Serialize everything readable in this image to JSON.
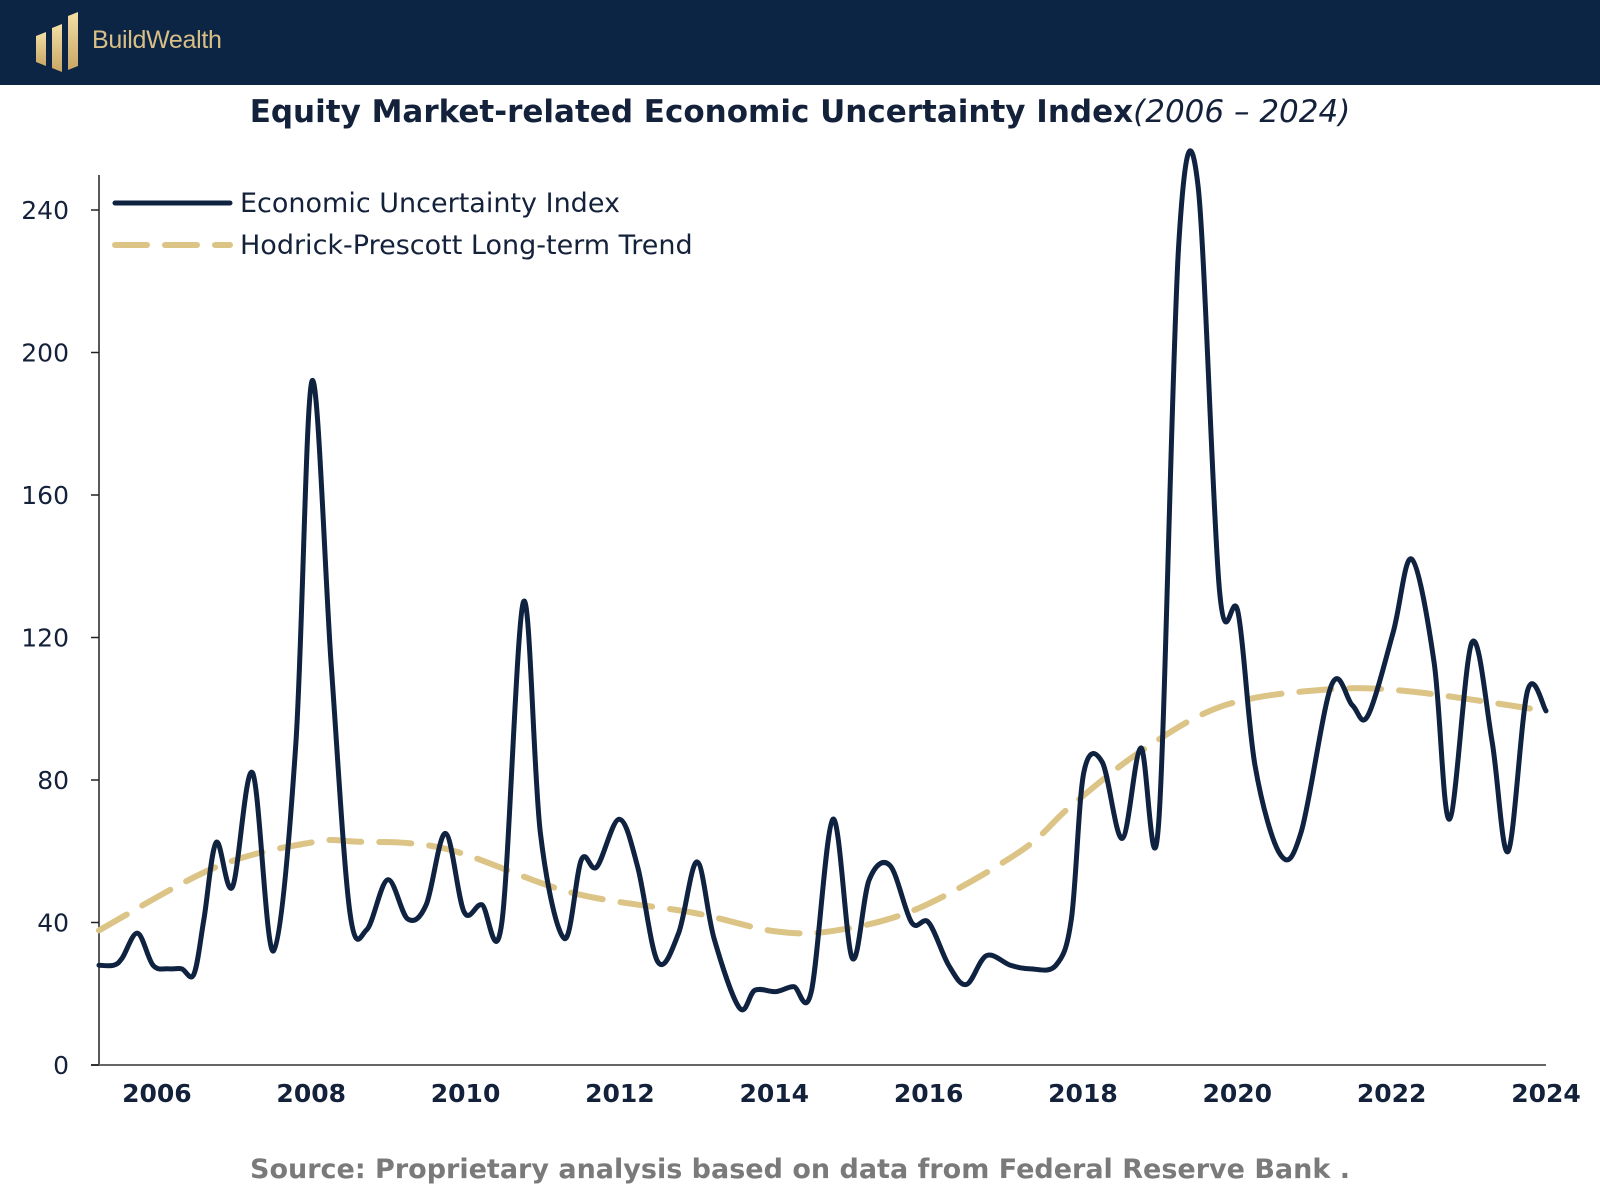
{
  "header": {
    "brand": "BuildWealth"
  },
  "colors": {
    "header_bg": "#0c2545",
    "gold": "#d8bf86",
    "series": "#0f2240",
    "trend": "#dcc487"
  },
  "chart_data": {
    "type": "line",
    "title": "Equity Market-related Economic Uncertainty Index",
    "subtitle": "(2006 – 2024)",
    "xlabel": "",
    "ylabel": "",
    "xlim": [
      2005.25,
      2024
    ],
    "ylim": [
      0,
      250
    ],
    "x_ticks": [
      2006,
      2008,
      2010,
      2012,
      2014,
      2016,
      2018,
      2020,
      2022,
      2024
    ],
    "x_tick_labels": [
      "2006",
      "2008",
      "2010",
      "2012",
      "2014",
      "2016",
      "2018",
      "2020",
      "2022",
      "2024"
    ],
    "y_ticks": [
      0,
      40,
      80,
      120,
      160,
      200,
      240
    ],
    "y_tick_labels": [
      "0",
      "40",
      "80",
      "120",
      "160",
      "200",
      "240"
    ],
    "grid": false,
    "legend_position": "top-left",
    "series": [
      {
        "name": "Economic Uncertainty Index",
        "style": "solid",
        "x": [
          2005.25,
          2005.44,
          2005.55,
          2005.75,
          2005.95,
          2006.15,
          2006.32,
          2006.48,
          2006.61,
          2006.77,
          2006.98,
          2007.24,
          2007.51,
          2007.8,
          2008.01,
          2008.26,
          2008.5,
          2008.72,
          2008.99,
          2009.25,
          2009.49,
          2009.74,
          2009.98,
          2010.21,
          2010.47,
          2010.75,
          2010.97,
          2011.28,
          2011.5,
          2011.7,
          2011.99,
          2012.23,
          2012.49,
          2012.76,
          2013.0,
          2013.22,
          2013.55,
          2013.75,
          2014.02,
          2014.25,
          2014.48,
          2014.76,
          2015.01,
          2015.23,
          2015.5,
          2015.78,
          2016.0,
          2016.26,
          2016.49,
          2016.75,
          2017.06,
          2017.32,
          2017.65,
          2017.85,
          2018.01,
          2018.25,
          2018.51,
          2018.75,
          2018.98,
          2019.24,
          2019.49,
          2019.77,
          2020.01,
          2020.23,
          2020.56,
          2020.83,
          2021.22,
          2021.49,
          2021.69,
          2022.02,
          2022.26,
          2022.55,
          2022.75,
          2023.04,
          2023.3,
          2023.51,
          2023.76,
          2024.0
        ],
        "values": [
          28,
          28,
          30,
          37,
          28,
          27,
          27,
          25.5,
          41,
          62.5,
          50,
          82,
          32,
          90,
          192,
          112,
          43,
          38,
          52,
          41,
          45,
          65,
          43,
          45,
          40,
          130,
          65,
          35.5,
          57.6,
          55.6,
          69,
          55.6,
          29,
          37,
          57,
          35.5,
          16,
          21,
          20.6,
          22,
          20.6,
          69,
          30,
          52,
          56,
          40,
          40,
          28,
          22.6,
          30.7,
          28,
          27,
          28,
          41,
          82,
          85,
          63.6,
          89,
          67.6,
          230,
          247,
          133,
          127,
          84,
          59,
          65.6,
          106.6,
          101,
          98,
          121.5,
          142,
          113,
          69,
          118.6,
          91,
          60,
          105,
          99.4
        ]
      },
      {
        "name": "Hodrick-Prescott Long-term Trend",
        "style": "dashed",
        "x": [
          2005.25,
          2006.77,
          2008.01,
          2008.59,
          2009.74,
          2011.37,
          2012.96,
          2014.02,
          2014.81,
          2015.87,
          2017.19,
          2017.85,
          2018.78,
          2019.84,
          2021.16,
          2022.22,
          2024.0
        ],
        "values": [
          37.8,
          55.6,
          62.5,
          62.7,
          60.7,
          48.4,
          42.7,
          37.5,
          37.8,
          44,
          60,
          72.8,
          88.5,
          101,
          105.4,
          104.9,
          99.4
        ]
      }
    ],
    "source": "Source:  Proprietary analysis based on data from Federal Reserve Bank  ."
  }
}
